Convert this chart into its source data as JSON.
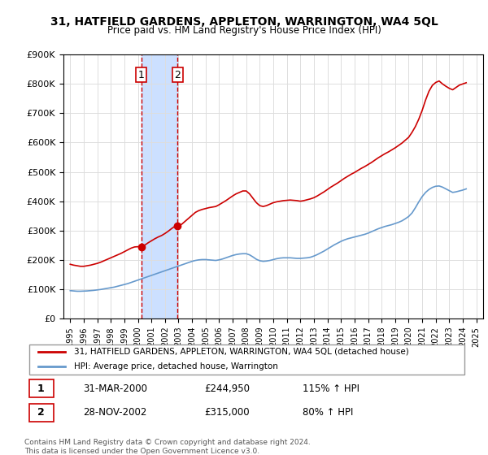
{
  "title": "31, HATFIELD GARDENS, APPLETON, WARRINGTON, WA4 5QL",
  "subtitle": "Price paid vs. HM Land Registry's House Price Index (HPI)",
  "legend_line1": "31, HATFIELD GARDENS, APPLETON, WARRINGTON, WA4 5QL (detached house)",
  "legend_line2": "HPI: Average price, detached house, Warrington",
  "table_rows": [
    {
      "num": "1",
      "date": "31-MAR-2000",
      "price": "£244,950",
      "change": "115% ↑ HPI"
    },
    {
      "num": "2",
      "date": "28-NOV-2002",
      "price": "£315,000",
      "change": "80% ↑ HPI"
    }
  ],
  "footer": "Contains HM Land Registry data © Crown copyright and database right 2024.\nThis data is licensed under the Open Government Licence v3.0.",
  "marker1_x": 2000.25,
  "marker2_x": 2002.92,
  "marker1_y": 244950,
  "marker2_y": 315000,
  "red_color": "#cc0000",
  "blue_color": "#6699cc",
  "shaded_color": "#cce0ff",
  "ylim": [
    0,
    900000
  ],
  "xlim": [
    1994.5,
    2025.5
  ],
  "red_x": [
    1995.0,
    1995.25,
    1995.5,
    1995.75,
    1996.0,
    1996.25,
    1996.5,
    1996.75,
    1997.0,
    1997.25,
    1997.5,
    1997.75,
    1998.0,
    1998.25,
    1998.5,
    1998.75,
    1999.0,
    1999.25,
    1999.5,
    1999.75,
    2000.0,
    2000.25,
    2000.5,
    2000.75,
    2001.0,
    2001.25,
    2001.5,
    2001.75,
    2002.0,
    2002.25,
    2002.5,
    2002.75,
    2003.0,
    2003.25,
    2003.5,
    2003.75,
    2004.0,
    2004.25,
    2004.5,
    2004.75,
    2005.0,
    2005.25,
    2005.5,
    2005.75,
    2006.0,
    2006.25,
    2006.5,
    2006.75,
    2007.0,
    2007.25,
    2007.5,
    2007.75,
    2008.0,
    2008.25,
    2008.5,
    2008.75,
    2009.0,
    2009.25,
    2009.5,
    2009.75,
    2010.0,
    2010.25,
    2010.5,
    2010.75,
    2011.0,
    2011.25,
    2011.5,
    2011.75,
    2012.0,
    2012.25,
    2012.5,
    2012.75,
    2013.0,
    2013.25,
    2013.5,
    2013.75,
    2014.0,
    2014.25,
    2014.5,
    2014.75,
    2015.0,
    2015.25,
    2015.5,
    2015.75,
    2016.0,
    2016.25,
    2016.5,
    2016.75,
    2017.0,
    2017.25,
    2017.5,
    2017.75,
    2018.0,
    2018.25,
    2018.5,
    2018.75,
    2019.0,
    2019.25,
    2019.5,
    2019.75,
    2020.0,
    2020.25,
    2020.5,
    2020.75,
    2021.0,
    2021.25,
    2021.5,
    2021.75,
    2022.0,
    2022.25,
    2022.5,
    2022.75,
    2023.0,
    2023.25,
    2023.5,
    2023.75,
    2024.0,
    2024.25
  ],
  "red_y": [
    185000,
    182000,
    180000,
    178000,
    178000,
    180000,
    182000,
    185000,
    188000,
    192000,
    197000,
    202000,
    207000,
    212000,
    217000,
    222000,
    228000,
    234000,
    240000,
    244000,
    244950,
    244950,
    250000,
    258000,
    265000,
    272000,
    278000,
    283000,
    290000,
    298000,
    307000,
    315000,
    315000,
    322000,
    332000,
    342000,
    352000,
    362000,
    368000,
    372000,
    375000,
    378000,
    380000,
    382000,
    388000,
    395000,
    402000,
    410000,
    418000,
    425000,
    430000,
    435000,
    435000,
    425000,
    410000,
    395000,
    385000,
    382000,
    385000,
    390000,
    395000,
    398000,
    400000,
    402000,
    403000,
    404000,
    403000,
    402000,
    400000,
    402000,
    405000,
    408000,
    412000,
    418000,
    425000,
    432000,
    440000,
    448000,
    455000,
    462000,
    470000,
    478000,
    485000,
    492000,
    498000,
    505000,
    512000,
    518000,
    525000,
    532000,
    540000,
    548000,
    555000,
    562000,
    568000,
    575000,
    582000,
    590000,
    598000,
    608000,
    618000,
    635000,
    655000,
    680000,
    710000,
    745000,
    775000,
    795000,
    805000,
    810000,
    800000,
    792000,
    785000,
    780000,
    788000,
    796000,
    800000,
    804000
  ],
  "blue_x": [
    1995.0,
    1995.25,
    1995.5,
    1995.75,
    1996.0,
    1996.25,
    1996.5,
    1996.75,
    1997.0,
    1997.25,
    1997.5,
    1997.75,
    1998.0,
    1998.25,
    1998.5,
    1998.75,
    1999.0,
    1999.25,
    1999.5,
    1999.75,
    2000.0,
    2000.25,
    2000.5,
    2000.75,
    2001.0,
    2001.25,
    2001.5,
    2001.75,
    2002.0,
    2002.25,
    2002.5,
    2002.75,
    2003.0,
    2003.25,
    2003.5,
    2003.75,
    2004.0,
    2004.25,
    2004.5,
    2004.75,
    2005.0,
    2005.25,
    2005.5,
    2005.75,
    2006.0,
    2006.25,
    2006.5,
    2006.75,
    2007.0,
    2007.25,
    2007.5,
    2007.75,
    2008.0,
    2008.25,
    2008.5,
    2008.75,
    2009.0,
    2009.25,
    2009.5,
    2009.75,
    2010.0,
    2010.25,
    2010.5,
    2010.75,
    2011.0,
    2011.25,
    2011.5,
    2011.75,
    2012.0,
    2012.25,
    2012.5,
    2012.75,
    2013.0,
    2013.25,
    2013.5,
    2013.75,
    2014.0,
    2014.25,
    2014.5,
    2014.75,
    2015.0,
    2015.25,
    2015.5,
    2015.75,
    2016.0,
    2016.25,
    2016.5,
    2016.75,
    2017.0,
    2017.25,
    2017.5,
    2017.75,
    2018.0,
    2018.25,
    2018.5,
    2018.75,
    2019.0,
    2019.25,
    2019.5,
    2019.75,
    2020.0,
    2020.25,
    2020.5,
    2020.75,
    2021.0,
    2021.25,
    2021.5,
    2021.75,
    2022.0,
    2022.25,
    2022.5,
    2022.75,
    2023.0,
    2023.25,
    2023.5,
    2023.75,
    2024.0,
    2024.25
  ],
  "blue_y": [
    95000,
    94000,
    93000,
    93000,
    93500,
    94000,
    95000,
    96000,
    97500,
    99000,
    101000,
    103000,
    105000,
    107000,
    110000,
    113000,
    116000,
    119000,
    123000,
    127000,
    131000,
    135000,
    139000,
    143000,
    147000,
    151000,
    155000,
    159000,
    163000,
    167000,
    171000,
    175000,
    179000,
    183000,
    187000,
    191000,
    195000,
    198000,
    200000,
    201000,
    201000,
    200000,
    199000,
    198000,
    200000,
    203000,
    207000,
    211000,
    215000,
    218000,
    220000,
    221000,
    221000,
    217000,
    210000,
    202000,
    197000,
    195000,
    196000,
    198000,
    201000,
    204000,
    206000,
    207000,
    207000,
    207000,
    206000,
    205000,
    205000,
    206000,
    207000,
    209000,
    213000,
    218000,
    224000,
    230000,
    237000,
    244000,
    251000,
    257000,
    263000,
    268000,
    272000,
    275000,
    278000,
    281000,
    284000,
    287000,
    291000,
    296000,
    301000,
    306000,
    310000,
    314000,
    317000,
    320000,
    324000,
    328000,
    333000,
    340000,
    348000,
    360000,
    378000,
    398000,
    416000,
    430000,
    440000,
    447000,
    451000,
    452000,
    448000,
    442000,
    436000,
    430000,
    432000,
    435000,
    438000,
    442000
  ]
}
